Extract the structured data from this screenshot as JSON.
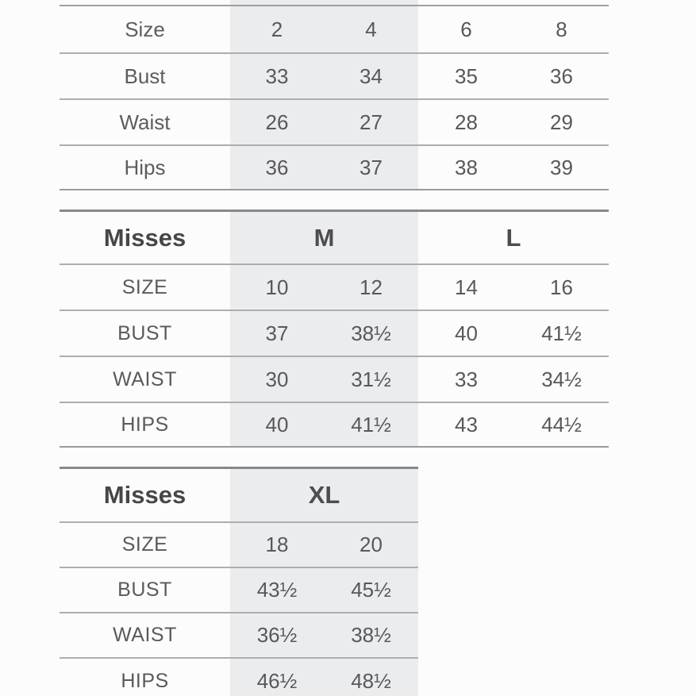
{
  "colors": {
    "background": "#fcfcfc",
    "highlight_band": "#ebecee",
    "row_line": "#aeaeb0",
    "section_top_line": "#88888b",
    "value_text": "#58585a",
    "header_text": "#464649"
  },
  "chart_data": [
    {
      "type": "table",
      "note_layout": "top table, header cropped off at image top; first two value columns highlighted",
      "rows": [
        {
          "label": "Size",
          "values": [
            "2",
            "4",
            "6",
            "8"
          ]
        },
        {
          "label": "Bust",
          "values": [
            "33",
            "34",
            "35",
            "36"
          ]
        },
        {
          "label": "Waist",
          "values": [
            "26",
            "27",
            "28",
            "29"
          ]
        },
        {
          "label": "Hips",
          "values": [
            "36",
            "37",
            "38",
            "39"
          ]
        }
      ]
    },
    {
      "type": "table",
      "header": {
        "title": "Misses",
        "groups": [
          "M",
          "L"
        ]
      },
      "rows": [
        {
          "label": "SIZE",
          "values": [
            "10",
            "12",
            "14",
            "16"
          ]
        },
        {
          "label": "BUST",
          "values": [
            "37",
            "38½",
            "40",
            "41½"
          ]
        },
        {
          "label": "WAIST",
          "values": [
            "30",
            "31½",
            "33",
            "34½"
          ]
        },
        {
          "label": "HIPS",
          "values": [
            "40",
            "41½",
            "43",
            "44½"
          ]
        }
      ]
    },
    {
      "type": "table",
      "header": {
        "title": "Misses",
        "groups": [
          "XL"
        ]
      },
      "rows": [
        {
          "label": "SIZE",
          "values": [
            "18",
            "20"
          ]
        },
        {
          "label": "BUST",
          "values": [
            "43½",
            "45½"
          ]
        },
        {
          "label": "WAIST",
          "values": [
            "36½",
            "38½"
          ]
        },
        {
          "label": "HIPS",
          "values": [
            "46½",
            "48½"
          ]
        }
      ]
    }
  ]
}
